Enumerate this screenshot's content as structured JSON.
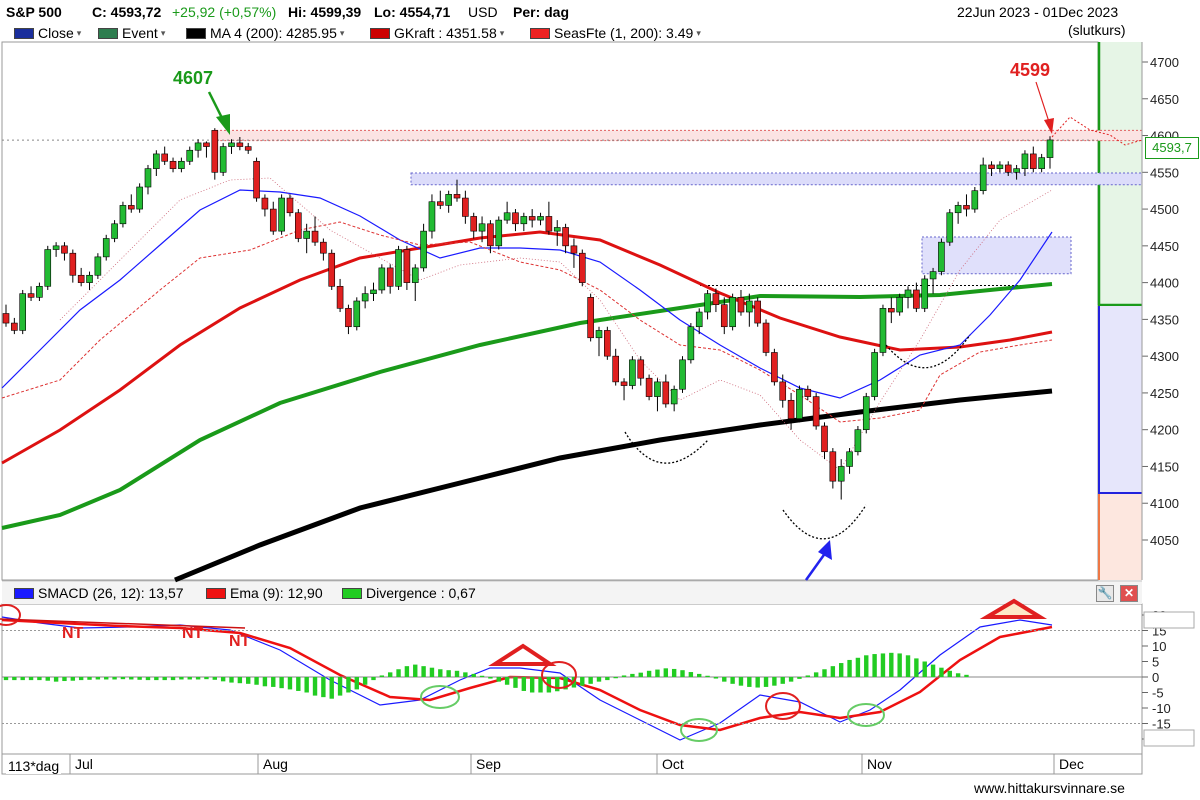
{
  "header": {
    "symbol": "S&P 500",
    "close": "C: 4593,72",
    "change": "+25,92 (+0,57%)",
    "high": "Hi: 4599,39",
    "low": "Lo: 4554,71",
    "currency": "USD",
    "period": "Per: dag",
    "range": "22Jun 2023 - 01Dec 2023",
    "range_note": "(slutkurs)"
  },
  "legend": [
    {
      "label": "Close",
      "color": "#1a2e9c"
    },
    {
      "label": "Event",
      "color": "#2e7d4f"
    },
    {
      "label": "MA 4 (200): 4285.95",
      "color": "#000000"
    },
    {
      "label": "GKraft : 4351.58",
      "color": "#cc0000"
    },
    {
      "label": "SeasFte (1, 200): 3.49",
      "color": "#ee2222"
    }
  ],
  "indicator_legend": [
    {
      "label": "SMACD (26, 12): 13,57",
      "color": "#1a1aff"
    },
    {
      "label": "Ema (9): 12,90",
      "color": "#ee1111"
    },
    {
      "label": "Divergence : 0,67",
      "color": "#22cc22"
    }
  ],
  "annotations": {
    "peak_left": "4607",
    "peak_right": "4599",
    "nt_labels": [
      "NT",
      "NT",
      "NT"
    ]
  },
  "last_price_label": "4593,7",
  "footer_left": "113*dag",
  "watermark": "www.hittakursvinnare.se",
  "colors": {
    "up": "#22bb33",
    "down": "#e02020",
    "ma_green": "#1a9a1a",
    "ma_red": "#dd1111",
    "ma_black": "#000000",
    "smacd": "#1a1aff"
  },
  "chart_data": {
    "type": "candlestick",
    "title": "S&P 500",
    "y_axis": {
      "min": 4050,
      "max": 4700,
      "ticks": [
        4050,
        4100,
        4150,
        4200,
        4250,
        4300,
        4350,
        4400,
        4450,
        4500,
        4550,
        4600,
        4650,
        4700
      ]
    },
    "x_axis": {
      "labels": [
        "Jul",
        "Aug",
        "Sep",
        "Oct",
        "Nov",
        "Dec"
      ]
    },
    "ohlc": [
      [
        4358,
        4370,
        4340,
        4345
      ],
      [
        4345,
        4352,
        4330,
        4335
      ],
      [
        4335,
        4390,
        4330,
        4385
      ],
      [
        4385,
        4395,
        4375,
        4380
      ],
      [
        4380,
        4400,
        4375,
        4395
      ],
      [
        4395,
        4450,
        4390,
        4445
      ],
      [
        4445,
        4455,
        4435,
        4450
      ],
      [
        4450,
        4455,
        4430,
        4440
      ],
      [
        4440,
        4445,
        4400,
        4410
      ],
      [
        4410,
        4420,
        4395,
        4400
      ],
      [
        4400,
        4415,
        4390,
        4410
      ],
      [
        4410,
        4440,
        4405,
        4435
      ],
      [
        4435,
        4465,
        4430,
        4460
      ],
      [
        4460,
        4485,
        4455,
        4480
      ],
      [
        4480,
        4510,
        4475,
        4505
      ],
      [
        4505,
        4520,
        4495,
        4500
      ],
      [
        4500,
        4535,
        4495,
        4530
      ],
      [
        4530,
        4560,
        4520,
        4555
      ],
      [
        4555,
        4580,
        4545,
        4575
      ],
      [
        4575,
        4585,
        4560,
        4565
      ],
      [
        4565,
        4570,
        4550,
        4555
      ],
      [
        4555,
        4570,
        4550,
        4565
      ],
      [
        4565,
        4585,
        4560,
        4580
      ],
      [
        4580,
        4595,
        4570,
        4590
      ],
      [
        4590,
        4592,
        4570,
        4585
      ],
      [
        4607,
        4610,
        4540,
        4550
      ],
      [
        4550,
        4590,
        4545,
        4585
      ],
      [
        4585,
        4595,
        4575,
        4590
      ],
      [
        4590,
        4598,
        4580,
        4585
      ],
      [
        4585,
        4590,
        4575,
        4580
      ],
      [
        4565,
        4570,
        4510,
        4515
      ],
      [
        4515,
        4520,
        4490,
        4500
      ],
      [
        4500,
        4510,
        4465,
        4470
      ],
      [
        4470,
        4520,
        4465,
        4515
      ],
      [
        4515,
        4520,
        4490,
        4495
      ],
      [
        4495,
        4500,
        4455,
        4460
      ],
      [
        4460,
        4480,
        4440,
        4470
      ],
      [
        4470,
        4490,
        4450,
        4455
      ],
      [
        4455,
        4460,
        4430,
        4440
      ],
      [
        4440,
        4445,
        4390,
        4395
      ],
      [
        4395,
        4405,
        4360,
        4365
      ],
      [
        4365,
        4370,
        4330,
        4340
      ],
      [
        4340,
        4380,
        4335,
        4375
      ],
      [
        4375,
        4395,
        4365,
        4385
      ],
      [
        4385,
        4400,
        4375,
        4390
      ],
      [
        4390,
        4425,
        4385,
        4420
      ],
      [
        4420,
        4425,
        4385,
        4395
      ],
      [
        4395,
        4450,
        4390,
        4445
      ],
      [
        4445,
        4450,
        4390,
        4400
      ],
      [
        4400,
        4425,
        4375,
        4420
      ],
      [
        4420,
        4480,
        4415,
        4470
      ],
      [
        4470,
        4520,
        4460,
        4510
      ],
      [
        4510,
        4525,
        4500,
        4505
      ],
      [
        4505,
        4525,
        4495,
        4520
      ],
      [
        4520,
        4540,
        4510,
        4515
      ],
      [
        4515,
        4525,
        4480,
        4490
      ],
      [
        4490,
        4495,
        4460,
        4470
      ],
      [
        4470,
        4490,
        4455,
        4480
      ],
      [
        4480,
        4485,
        4440,
        4450
      ],
      [
        4450,
        4490,
        4445,
        4485
      ],
      [
        4485,
        4510,
        4480,
        4495
      ],
      [
        4495,
        4500,
        4470,
        4480
      ],
      [
        4480,
        4495,
        4470,
        4490
      ],
      [
        4490,
        4500,
        4475,
        4485
      ],
      [
        4485,
        4495,
        4478,
        4490
      ],
      [
        4490,
        4510,
        4465,
        4470
      ],
      [
        4470,
        4485,
        4450,
        4475
      ],
      [
        4475,
        4480,
        4440,
        4450
      ],
      [
        4450,
        4460,
        4420,
        4440
      ],
      [
        4440,
        4445,
        4395,
        4400
      ],
      [
        4380,
        4385,
        4320,
        4325
      ],
      [
        4325,
        4340,
        4300,
        4335
      ],
      [
        4335,
        4340,
        4295,
        4300
      ],
      [
        4300,
        4310,
        4260,
        4265
      ],
      [
        4265,
        4270,
        4240,
        4260
      ],
      [
        4260,
        4300,
        4255,
        4295
      ],
      [
        4295,
        4300,
        4260,
        4270
      ],
      [
        4270,
        4275,
        4240,
        4245
      ],
      [
        4245,
        4270,
        4225,
        4265
      ],
      [
        4265,
        4275,
        4230,
        4235
      ],
      [
        4235,
        4260,
        4225,
        4255
      ],
      [
        4255,
        4300,
        4250,
        4295
      ],
      [
        4295,
        4345,
        4290,
        4340
      ],
      [
        4340,
        4365,
        4330,
        4360
      ],
      [
        4360,
        4390,
        4350,
        4385
      ],
      [
        4385,
        4392,
        4360,
        4370
      ],
      [
        4370,
        4380,
        4330,
        4340
      ],
      [
        4340,
        4385,
        4335,
        4380
      ],
      [
        4380,
        4390,
        4355,
        4360
      ],
      [
        4360,
        4385,
        4340,
        4375
      ],
      [
        4375,
        4380,
        4340,
        4345
      ],
      [
        4345,
        4350,
        4300,
        4305
      ],
      [
        4305,
        4310,
        4260,
        4265
      ],
      [
        4265,
        4275,
        4230,
        4240
      ],
      [
        4240,
        4250,
        4200,
        4215
      ],
      [
        4215,
        4260,
        4210,
        4255
      ],
      [
        4255,
        4260,
        4240,
        4245
      ],
      [
        4245,
        4250,
        4200,
        4205
      ],
      [
        4205,
        4210,
        4160,
        4170
      ],
      [
        4170,
        4175,
        4120,
        4130
      ],
      [
        4130,
        4160,
        4105,
        4150
      ],
      [
        4150,
        4175,
        4140,
        4170
      ],
      [
        4170,
        4205,
        4165,
        4200
      ],
      [
        4200,
        4250,
        4195,
        4245
      ],
      [
        4245,
        4310,
        4240,
        4305
      ],
      [
        4305,
        4370,
        4300,
        4365
      ],
      [
        4365,
        4380,
        4345,
        4360
      ],
      [
        4360,
        4385,
        4355,
        4380
      ],
      [
        4380,
        4395,
        4365,
        4390
      ],
      [
        4390,
        4400,
        4360,
        4365
      ],
      [
        4365,
        4410,
        4360,
        4405
      ],
      [
        4405,
        4420,
        4385,
        4415
      ],
      [
        4415,
        4460,
        4410,
        4455
      ],
      [
        4455,
        4500,
        4450,
        4495
      ],
      [
        4495,
        4510,
        4480,
        4505
      ],
      [
        4505,
        4520,
        4490,
        4500
      ],
      [
        4500,
        4530,
        4495,
        4525
      ],
      [
        4525,
        4570,
        4520,
        4560
      ],
      [
        4560,
        4565,
        4545,
        4555
      ],
      [
        4555,
        4565,
        4550,
        4560
      ],
      [
        4560,
        4565,
        4545,
        4550
      ],
      [
        4550,
        4560,
        4540,
        4555
      ],
      [
        4555,
        4580,
        4545,
        4575
      ],
      [
        4575,
        4585,
        4550,
        4555
      ],
      [
        4555,
        4575,
        4550,
        4570
      ],
      [
        4570,
        4599,
        4555,
        4594
      ]
    ]
  }
}
